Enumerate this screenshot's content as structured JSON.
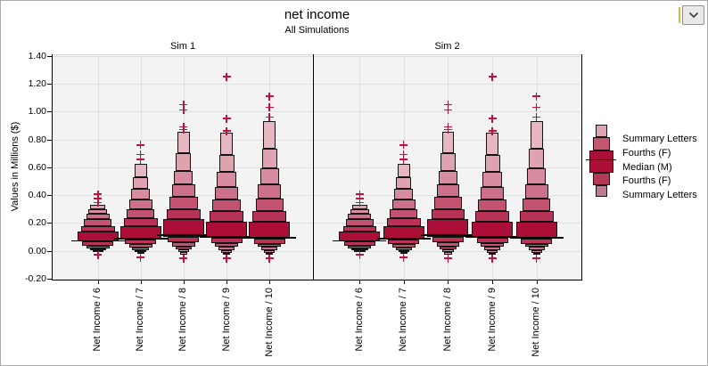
{
  "title": "net income",
  "subtitle": "All Simulations",
  "toolbar": {
    "dropdown_icon": "chevron-down"
  },
  "y_axis": {
    "label": "Values in Millions ($)",
    "tick_labels": [
      "1.40",
      "1.20",
      "1.00",
      "0.80",
      "0.60",
      "0.40",
      "0.20",
      "0.00",
      "-0.20"
    ],
    "tick_values": [
      1.4,
      1.2,
      1.0,
      0.8,
      0.6,
      0.4,
      0.2,
      0.0,
      -0.2
    ],
    "min": -0.2,
    "max": 1.4
  },
  "legend": {
    "items": [
      "Summary Letters",
      "Fourths (F)",
      "Median (M)",
      "Fourths (F)",
      "Summary Letters"
    ],
    "glyph": {
      "widths": [
        13,
        19,
        27,
        19,
        13
      ],
      "heights": [
        14,
        15,
        25,
        14,
        13
      ],
      "colors": [
        "#E0A4B2",
        "#C4566F",
        "#AC1038",
        "#B23A58",
        "#C27A8E"
      ],
      "median_color": "#000000"
    }
  },
  "colors": {
    "accent": "#C4103C",
    "ramp_center_to_outer": [
      "#AB0F37",
      "#B93356",
      "#C35370",
      "#CD7089",
      "#D78C9F",
      "#DFA2B1",
      "#E6B6C1",
      "#ECC7D0"
    ],
    "panel_bg": "#F3F3F3",
    "gridline": "#E0E0E0",
    "axis": "#000000",
    "outlier": "#C4103C"
  },
  "chart_data": {
    "type": "letter-value-boxplot",
    "title": "net income",
    "subtitle": "All Simulations",
    "ylabel": "Values in Millions ($)",
    "ylim": [
      -0.2,
      1.4
    ],
    "grid": true,
    "legend_position": "right",
    "categories": [
      "Net Income / 6",
      "Net Income / 7",
      "Net Income / 8",
      "Net Income / 9",
      "Net Income / 10"
    ],
    "panels": [
      {
        "name": "Sim 1",
        "groups": [
          {
            "category": "Net Income / 6",
            "median": 0.072,
            "fourths": [
              0.065,
              0.136
            ],
            "upper_letter_values": [
              0.178,
              0.225,
              0.264,
              0.3,
              0.332
            ],
            "lower_letter_values": [
              0.035,
              0.016,
              0.003,
              -0.01
            ],
            "outliers_high": [
              0.405,
              0.375,
              0.345
            ],
            "outliers_low": [
              -0.03
            ]
          },
          {
            "category": "Net Income / 7",
            "median": 0.086,
            "fourths": [
              0.078,
              0.175
            ],
            "upper_letter_values": [
              0.235,
              0.3,
              0.37,
              0.445,
              0.53,
              0.624
            ],
            "lower_letter_values": [
              0.045,
              0.022,
              0.005,
              -0.012,
              -0.025
            ],
            "outliers_high": [
              0.76,
              0.69,
              0.655
            ],
            "outliers_low": [
              -0.048
            ]
          },
          {
            "category": "Net Income / 8",
            "median": 0.112,
            "fourths": [
              0.1,
              0.225
            ],
            "upper_letter_values": [
              0.3,
              0.385,
              0.475,
              0.575,
              0.7,
              0.854
            ],
            "lower_letter_values": [
              0.058,
              0.03,
              0.008,
              -0.012,
              -0.028
            ],
            "outliers_high": [
              1.05,
              1.01,
              0.89,
              0.87
            ],
            "outliers_low": [
              -0.055
            ]
          },
          {
            "category": "Net Income / 9",
            "median": 0.099,
            "fourths": [
              0.09,
              0.21
            ],
            "upper_letter_values": [
              0.285,
              0.37,
              0.46,
              0.565,
              0.69,
              0.848
            ],
            "lower_letter_values": [
              0.052,
              0.027,
              0.006,
              -0.014,
              -0.03
            ],
            "outliers_high": [
              1.25,
              0.95,
              0.86
            ],
            "outliers_low": [
              -0.055
            ]
          },
          {
            "category": "Net Income / 10",
            "median": 0.093,
            "fourths": [
              0.085,
              0.205
            ],
            "upper_letter_values": [
              0.285,
              0.375,
              0.475,
              0.59,
              0.73,
              0.931
            ],
            "lower_letter_values": [
              0.05,
              0.026,
              0.005,
              -0.015,
              -0.03
            ],
            "outliers_high": [
              1.11,
              1.03,
              0.96
            ],
            "outliers_low": [
              -0.055
            ]
          }
        ]
      },
      {
        "name": "Sim 2",
        "groups": [
          {
            "category": "Net Income / 6",
            "median": 0.072,
            "fourths": [
              0.065,
              0.136
            ],
            "upper_letter_values": [
              0.178,
              0.225,
              0.264,
              0.3,
              0.332
            ],
            "lower_letter_values": [
              0.035,
              0.016,
              0.003,
              -0.01
            ],
            "outliers_high": [
              0.405,
              0.375,
              0.345
            ],
            "outliers_low": [
              -0.03
            ]
          },
          {
            "category": "Net Income / 7",
            "median": 0.086,
            "fourths": [
              0.078,
              0.175
            ],
            "upper_letter_values": [
              0.235,
              0.3,
              0.37,
              0.445,
              0.53,
              0.624
            ],
            "lower_letter_values": [
              0.045,
              0.022,
              0.005,
              -0.012,
              -0.025
            ],
            "outliers_high": [
              0.76,
              0.69,
              0.655
            ],
            "outliers_low": [
              -0.048
            ]
          },
          {
            "category": "Net Income / 8",
            "median": 0.112,
            "fourths": [
              0.1,
              0.225
            ],
            "upper_letter_values": [
              0.3,
              0.385,
              0.475,
              0.575,
              0.7,
              0.854
            ],
            "lower_letter_values": [
              0.058,
              0.03,
              0.008,
              -0.012,
              -0.028
            ],
            "outliers_high": [
              1.05,
              1.01,
              0.89,
              0.87
            ],
            "outliers_low": [
              -0.055
            ]
          },
          {
            "category": "Net Income / 9",
            "median": 0.099,
            "fourths": [
              0.09,
              0.21
            ],
            "upper_letter_values": [
              0.285,
              0.37,
              0.46,
              0.565,
              0.69,
              0.848
            ],
            "lower_letter_values": [
              0.052,
              0.027,
              0.006,
              -0.014,
              -0.03
            ],
            "outliers_high": [
              1.25,
              0.95,
              0.86
            ],
            "outliers_low": [
              -0.055
            ]
          },
          {
            "category": "Net Income / 10",
            "median": 0.093,
            "fourths": [
              0.085,
              0.205
            ],
            "upper_letter_values": [
              0.285,
              0.375,
              0.475,
              0.59,
              0.73,
              0.931
            ],
            "lower_letter_values": [
              0.05,
              0.026,
              0.005,
              -0.015,
              -0.03
            ],
            "outliers_high": [
              1.11,
              1.03,
              0.96
            ],
            "outliers_low": [
              -0.055
            ]
          }
        ]
      }
    ]
  }
}
